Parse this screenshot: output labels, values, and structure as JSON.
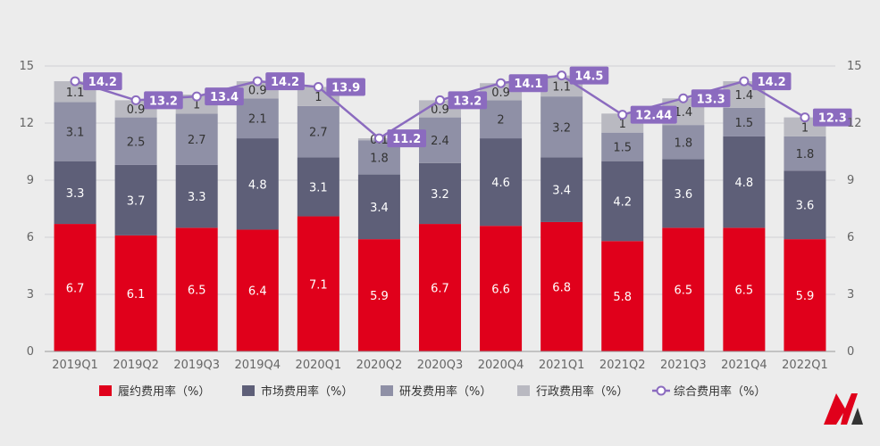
{
  "chart_data": {
    "type": "bar",
    "stacked": true,
    "categories": [
      "2019Q1",
      "2019Q2",
      "2019Q3",
      "2019Q4",
      "2020Q1",
      "2020Q2",
      "2020Q3",
      "2020Q4",
      "2021Q1",
      "2021Q2",
      "2021Q3",
      "2021Q4",
      "2022Q1"
    ],
    "series": [
      {
        "name": "履约费用率（%）",
        "color": "#e0001b",
        "label_color": "#ffffff",
        "values": [
          6.7,
          6.1,
          6.5,
          6.4,
          7.1,
          5.9,
          6.7,
          6.6,
          6.8,
          5.8,
          6.5,
          6.5,
          5.9
        ]
      },
      {
        "name": "市场费用率（%）",
        "color": "#5e5f78",
        "label_color": "#ffffff",
        "values": [
          3.3,
          3.7,
          3.3,
          4.8,
          3.1,
          3.4,
          3.2,
          4.6,
          3.4,
          4.2,
          3.6,
          4.8,
          3.6
        ]
      },
      {
        "name": "研发费用率（%）",
        "color": "#8f90a6",
        "label_color": "#333333",
        "values": [
          3.1,
          2.5,
          2.7,
          2.1,
          2.7,
          1.8,
          2.4,
          2,
          3.2,
          1.5,
          1.8,
          1.5,
          1.8
        ]
      },
      {
        "name": "行政费用率（%）",
        "color": "#b9b9c1",
        "label_color": "#333333",
        "values": [
          1.1,
          0.9,
          1,
          0.9,
          1,
          0.1,
          0.9,
          0.9,
          1.1,
          1,
          1.4,
          1.4,
          1
        ]
      }
    ],
    "line_series": {
      "name": "综合费用率（%）",
      "color": "#8b6bbf",
      "values": [
        14.2,
        13.2,
        13.4,
        14.2,
        13.9,
        11.2,
        13.2,
        14.1,
        14.5,
        12.44,
        13.3,
        14.2,
        12.3
      ],
      "labels": [
        "14.2",
        "13.2",
        "13.4",
        "14.2",
        "13.9",
        "11.2",
        "13.2",
        "14.1",
        "14.5",
        "12.44",
        "13.3",
        "14.2",
        "12.3"
      ]
    },
    "ylim": [
      0,
      15
    ],
    "yticks": [
      0,
      3,
      6,
      9,
      12,
      15
    ],
    "ytick_labels": [
      "0",
      "3",
      "6",
      "9",
      "12",
      "15"
    ],
    "secondary_yticks": [
      0,
      3,
      6,
      9,
      12,
      15
    ],
    "secondary_ytick_labels": [
      "0",
      "3",
      "6",
      "9",
      "12",
      "15"
    ],
    "grid": true,
    "legend_position": "bottom"
  },
  "logo": {
    "name": "brand-logo",
    "primary_color": "#e0001b",
    "secondary_color": "#333333"
  }
}
